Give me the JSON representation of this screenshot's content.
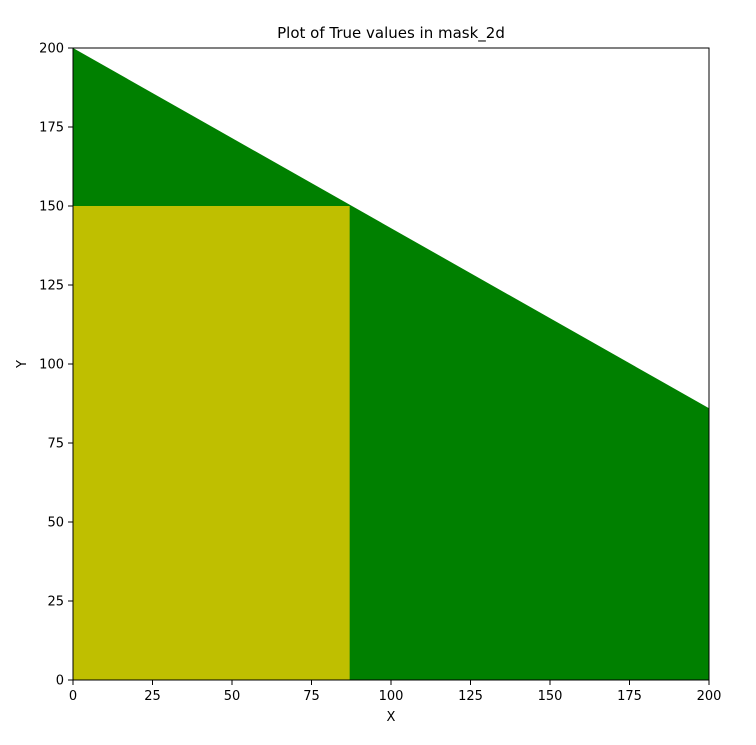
{
  "chart_data": {
    "type": "area",
    "title": "Plot of True values in mask_2d",
    "xlabel": "X",
    "ylabel": "Y",
    "xlim": [
      0,
      200
    ],
    "ylim": [
      0,
      200
    ],
    "x_ticks": [
      0,
      25,
      50,
      75,
      100,
      125,
      150,
      175,
      200
    ],
    "y_ticks": [
      0,
      25,
      50,
      75,
      100,
      125,
      150,
      175,
      200
    ],
    "grid": false,
    "series": [
      {
        "color": "#008000",
        "boundary_x": [
          0,
          200
        ],
        "boundary_y": [
          200,
          86
        ]
      },
      {
        "color": "#bfbf00",
        "rect_x": [
          0,
          87
        ],
        "rect_y": [
          0,
          150
        ]
      }
    ]
  }
}
